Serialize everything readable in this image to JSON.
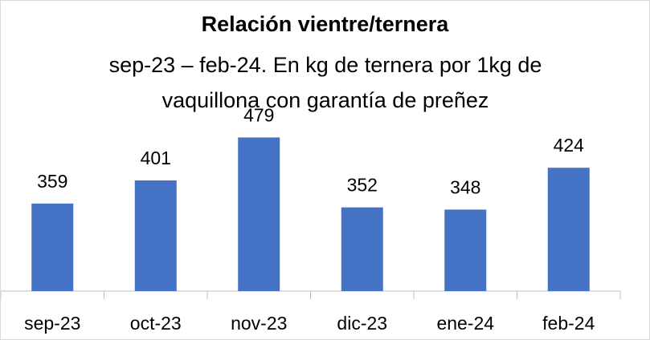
{
  "chart_data": {
    "type": "bar",
    "title": "Relación vientre/ternera",
    "subtitle": "sep-23 – feb-24. En kg de ternera por 1kg de vaquillona con garantía de preñez",
    "categories": [
      "sep-23",
      "oct-23",
      "nov-23",
      "dic-23",
      "ene-24",
      "feb-24"
    ],
    "values": [
      359,
      401,
      479,
      352,
      348,
      424
    ],
    "color": "#4472c4",
    "ylim": [
      200,
      500
    ]
  }
}
